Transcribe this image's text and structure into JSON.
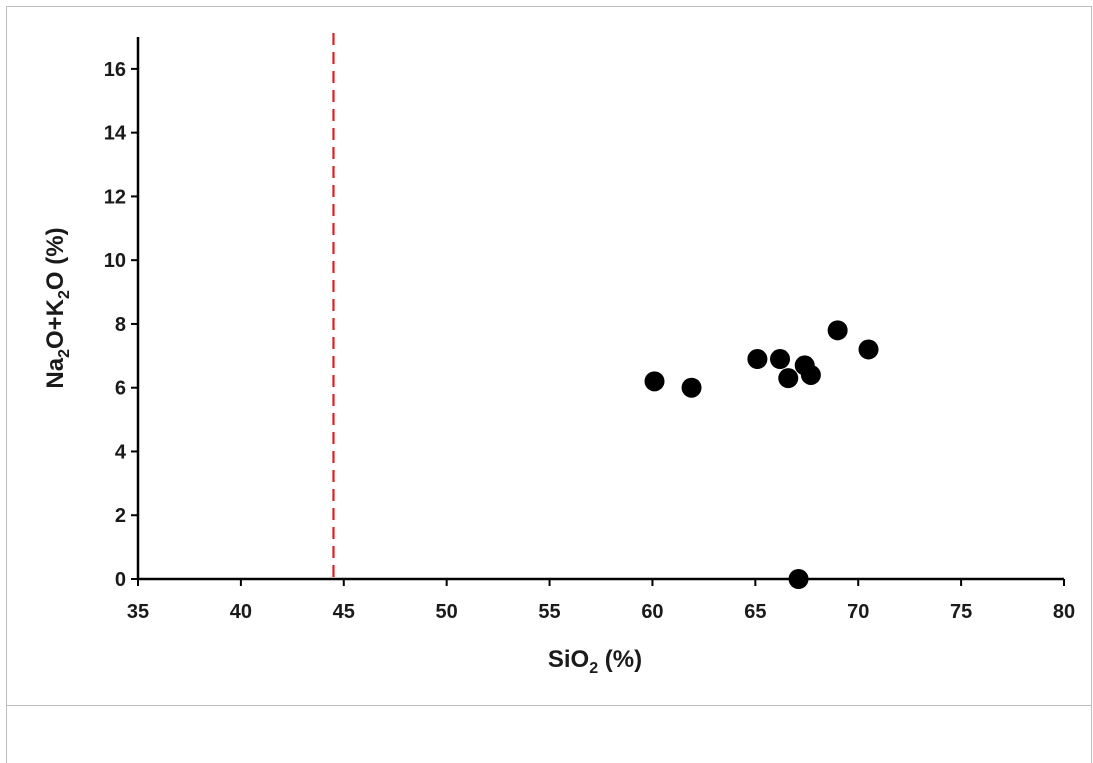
{
  "chart_data": {
    "type": "scatter",
    "title": "",
    "xlabel": {
      "prefix": "SiO",
      "sub": "2",
      "suffix": " (%)"
    },
    "ylabel": {
      "parts": [
        {
          "text": "Na",
          "sub": false
        },
        {
          "text": "2",
          "sub": true
        },
        {
          "text": "O+K",
          "sub": false
        },
        {
          "text": "2",
          "sub": true
        },
        {
          "text": "O (%)",
          "sub": false
        }
      ]
    },
    "xlim": [
      35,
      80
    ],
    "ylim": [
      0,
      17
    ],
    "x_ticks": [
      "35",
      "40",
      "45",
      "50",
      "55",
      "60",
      "65",
      "70",
      "75",
      "80"
    ],
    "y_ticks": [
      "0",
      "2",
      "4",
      "6",
      "8",
      "10",
      "12",
      "14",
      "16"
    ],
    "grid": false,
    "legend": "none",
    "series": [
      {
        "color": "#000000",
        "points": [
          {
            "x": 60.1,
            "y": 6.2
          },
          {
            "x": 61.9,
            "y": 6.0
          },
          {
            "x": 65.1,
            "y": 6.9
          },
          {
            "x": 66.2,
            "y": 6.9
          },
          {
            "x": 66.6,
            "y": 6.3
          },
          {
            "x": 67.4,
            "y": 6.7
          },
          {
            "x": 67.7,
            "y": 6.4
          },
          {
            "x": 69.0,
            "y": 7.8
          },
          {
            "x": 70.5,
            "y": 7.2
          },
          {
            "x": 67.1,
            "y": 0.0
          }
        ]
      }
    ],
    "reference_lines": [
      {
        "orientation": "vertical",
        "x": 44.5,
        "style": "dashed",
        "color": "#e02020"
      }
    ],
    "axis_color": "#000000"
  }
}
